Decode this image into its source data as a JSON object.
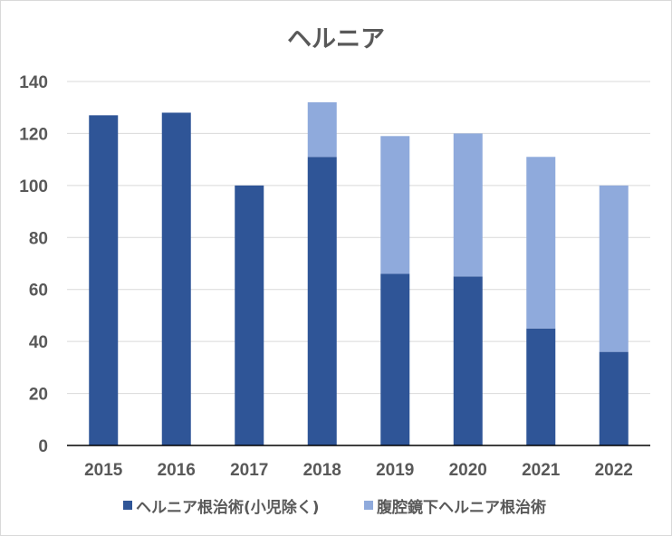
{
  "chart_data": {
    "type": "bar",
    "stacked": true,
    "title": "ヘルニア",
    "categories": [
      "2015",
      "2016",
      "2017",
      "2018",
      "2019",
      "2020",
      "2021",
      "2022"
    ],
    "series": [
      {
        "name": "ヘルニア根治術(小児除く)",
        "color": "#2f5597",
        "values": [
          127,
          128,
          100,
          111,
          66,
          65,
          45,
          36
        ]
      },
      {
        "name": "腹腔鏡下ヘルニア根治術",
        "color": "#8faadc",
        "values": [
          0,
          0,
          0,
          21,
          53,
          55,
          66,
          64
        ]
      }
    ],
    "ylim": [
      0,
      140
    ],
    "yticks": [
      0,
      20,
      40,
      60,
      80,
      100,
      120,
      140
    ],
    "grid": true,
    "legend": "bottom"
  }
}
